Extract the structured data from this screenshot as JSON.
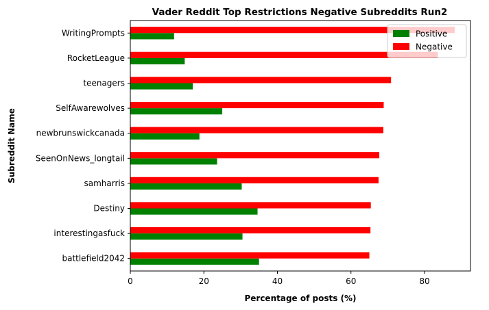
{
  "chart_data": {
    "type": "bar",
    "orientation": "horizontal",
    "title": "Vader Reddit Top Restrictions Negative Subreddits Run2",
    "xlabel": "Percentage of posts (%)",
    "ylabel": "Subreddit Name",
    "xlim": [
      0,
      92.5
    ],
    "xticks": [
      "0",
      "20",
      "40",
      "60",
      "80"
    ],
    "categories": [
      "battlefield2042",
      "interestingasfuck",
      "Destiny",
      "samharris",
      "SeenOnNews_longtail",
      "newbrunswickcanada",
      "SelfAwarewolves",
      "teenagers",
      "RocketLeague",
      "WritingPrompts"
    ],
    "series": [
      {
        "name": "Positive",
        "color": "#008000",
        "values": [
          35.0,
          30.5,
          34.6,
          30.3,
          23.6,
          18.8,
          25.0,
          17.0,
          14.8,
          11.9
        ]
      },
      {
        "name": "Negative",
        "color": "#ff0000",
        "values": [
          65.0,
          65.3,
          65.4,
          67.5,
          67.7,
          68.8,
          68.9,
          70.9,
          83.6,
          88.2
        ]
      }
    ],
    "legend_position": "upper right",
    "grid": false
  }
}
